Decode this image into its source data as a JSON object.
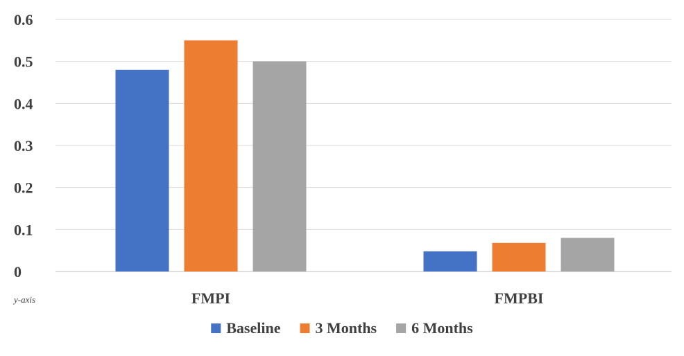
{
  "chart_data": {
    "type": "bar",
    "title": "",
    "xlabel": "",
    "ylabel": "",
    "axis_note": "y-axis",
    "categories": [
      "FMPI",
      "FMPBI"
    ],
    "series": [
      {
        "name": "Baseline",
        "color": "#4472C4",
        "values": [
          0.48,
          0.048
        ]
      },
      {
        "name": "3 Months",
        "color": "#ED7D31",
        "values": [
          0.55,
          0.068
        ]
      },
      {
        "name": "6 Months",
        "color": "#A5A5A5",
        "values": [
          0.5,
          0.08
        ]
      }
    ],
    "ylim": [
      0,
      0.6
    ],
    "yticks": [
      "0",
      "0.1",
      "0.2",
      "0.3",
      "0.4",
      "0.5",
      "0.6"
    ],
    "grid": true,
    "legend_position": "bottom"
  }
}
